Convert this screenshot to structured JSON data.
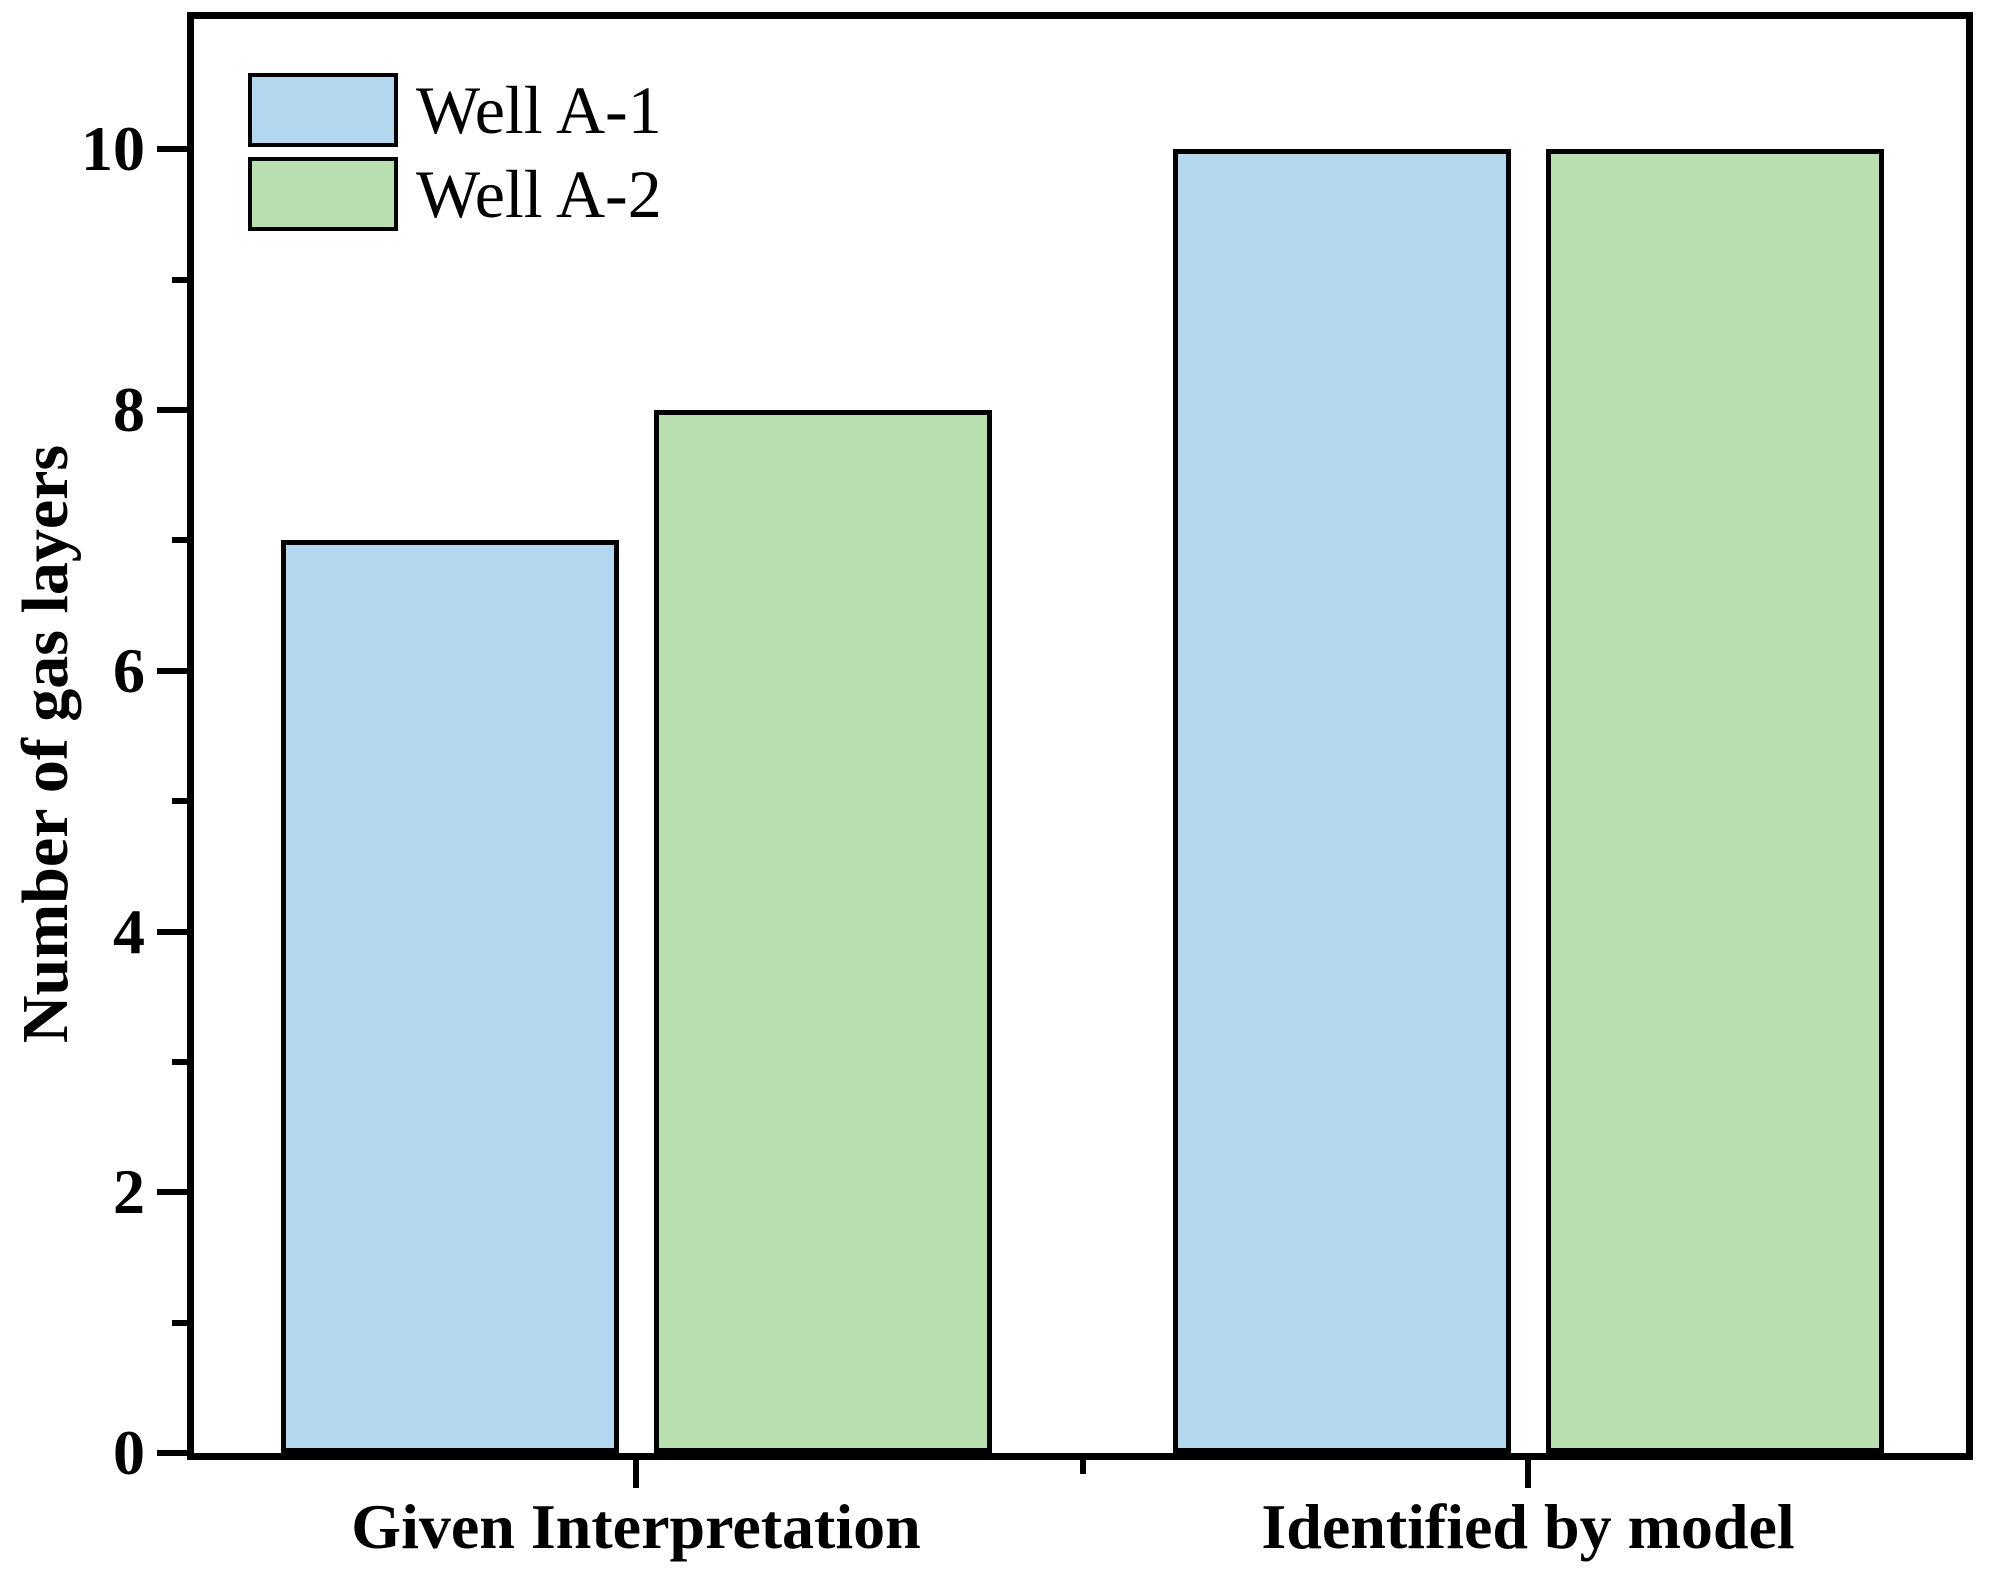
{
  "chart_data": {
    "type": "bar",
    "title": "",
    "categories": [
      "Given Interpretation",
      "Identified by model"
    ],
    "series": [
      {
        "name": "Well A-1",
        "color": "#b3d7ee",
        "values": [
          7,
          10
        ]
      },
      {
        "name": "Well A-2",
        "color": "#b9dfb1",
        "values": [
          8,
          10
        ]
      }
    ],
    "xlabel": "",
    "ylabel": "Number of gas layers",
    "ylim": [
      0,
      11
    ],
    "yticks_major": [
      0,
      2,
      4,
      6,
      8,
      10
    ],
    "yticks_minor": [
      1,
      3,
      5,
      7,
      9
    ],
    "bar_edge_color": "#000000",
    "axis_color": "#000000",
    "background_color": "#ffffff",
    "legend_position": "top-left",
    "grid": false
  }
}
